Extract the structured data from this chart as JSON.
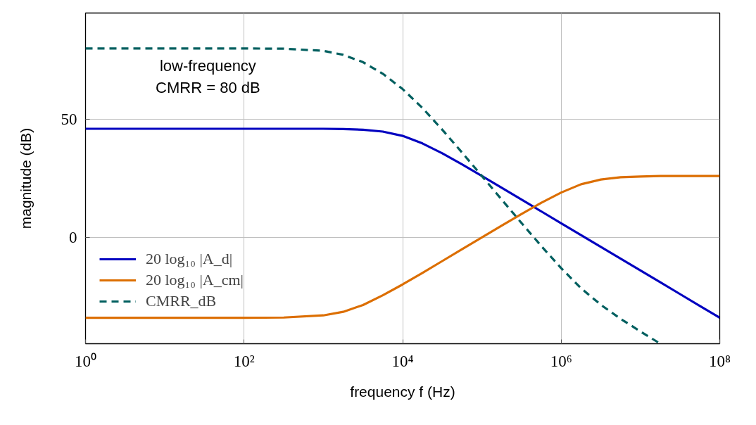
{
  "chart_data": {
    "type": "line",
    "xlabel": "frequency f (Hz)",
    "ylabel": "magnitude (dB)",
    "log": "x",
    "xlim": [
      1,
      100000000
    ],
    "ylim": [
      -45,
      95
    ],
    "xticks": [
      {
        "value": 1,
        "label": "10⁰"
      },
      {
        "value": 100,
        "label": "10²"
      },
      {
        "value": 10000,
        "label": "10⁴"
      },
      {
        "value": 1000000,
        "label": "10⁶"
      },
      {
        "value": 100000000,
        "label": "10⁸"
      }
    ],
    "yticks": [
      0,
      50
    ],
    "grid": true,
    "legend": "bottom left",
    "x": [
      1,
      10,
      100,
      316.2,
      1000,
      1778,
      3162,
      5623,
      10000,
      17783,
      31623,
      56234,
      100000,
      177828,
      316228,
      562341,
      1000000,
      1778279,
      3162278,
      5623413,
      10000000,
      17782794,
      31622777,
      56234133,
      100000000
    ],
    "series": [
      {
        "name": "20 log₁₀ |A_d|",
        "color": "#0000c0",
        "values": [
          46.0,
          46.0,
          46.0,
          46.0,
          46.0,
          45.9,
          45.6,
          44.8,
          43.0,
          39.8,
          35.6,
          30.9,
          26.0,
          21.0,
          16.0,
          11.0,
          6.0,
          1.0,
          -4.0,
          -9.0,
          -14.0,
          -19.0,
          -24.0,
          -29.0,
          -34.0
        ]
      },
      {
        "name": "20 log₁₀ |A_cm|",
        "color": "#dc6e00",
        "values": [
          -34.0,
          -34.0,
          -34.0,
          -33.9,
          -33.0,
          -31.5,
          -28.6,
          -24.5,
          -19.9,
          -15.0,
          -10.0,
          -5.0,
          0.0,
          5.0,
          9.9,
          14.7,
          19.0,
          22.5,
          24.5,
          25.5,
          25.8,
          26.0,
          26.0,
          26.0,
          26.0
        ]
      },
      {
        "name": "CMRR_dB",
        "color": "#005f5f",
        "line_style": "dashed",
        "x": [
          1,
          10,
          100,
          316.2,
          1000,
          1778,
          3162,
          5623,
          10000,
          17783,
          31623,
          56234,
          100000,
          177828,
          316228,
          562341,
          1000000,
          1778279,
          3162278,
          5623413,
          10000000,
          17782794
        ],
        "values": [
          80.0,
          80.0,
          80.0,
          79.9,
          79.0,
          77.3,
          74.2,
          69.3,
          62.8,
          54.8,
          45.6,
          35.9,
          26.0,
          16.0,
          6.1,
          -3.7,
          -13.0,
          -21.5,
          -28.5,
          -34.5,
          -39.8,
          -45.0
        ]
      }
    ],
    "annotations": [
      {
        "text": "low-frequency\nCMRR = 80 dB",
        "x": 35,
        "y": 80
      }
    ]
  }
}
